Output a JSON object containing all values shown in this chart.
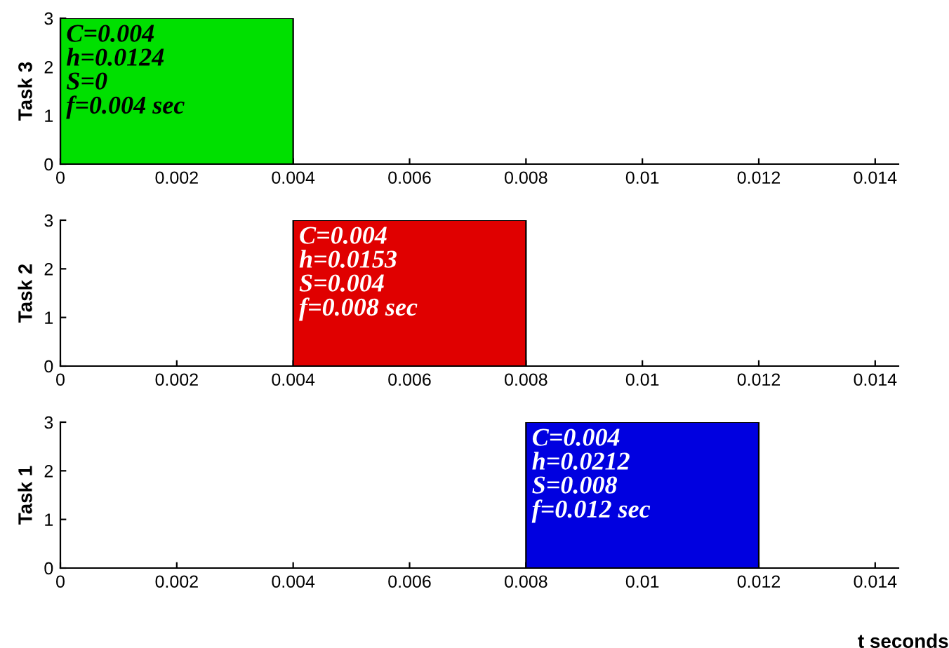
{
  "chart_data": [
    {
      "type": "area",
      "ylabel": "Task 3",
      "xlim": [
        0,
        0.0144
      ],
      "ylim": [
        0,
        3
      ],
      "xticks": [
        0,
        0.002,
        0.004,
        0.006,
        0.008,
        0.01,
        0.012,
        0.014
      ],
      "yticks": [
        0,
        1,
        2,
        3
      ],
      "grid": false,
      "legend": false,
      "series": [
        {
          "color": "#00e000",
          "x": [
            0,
            0.004
          ],
          "values": [
            3,
            3
          ]
        }
      ],
      "annotations": [
        {
          "text": "C=0.004\nh=0.0124\nS=0\nf=0.004 sec",
          "x": 0,
          "y": 3
        }
      ]
    },
    {
      "type": "area",
      "ylabel": "Task 2",
      "xlim": [
        0,
        0.0144
      ],
      "ylim": [
        0,
        3
      ],
      "xticks": [
        0,
        0.002,
        0.004,
        0.006,
        0.008,
        0.01,
        0.012,
        0.014
      ],
      "yticks": [
        0,
        1,
        2,
        3
      ],
      "grid": false,
      "legend": false,
      "series": [
        {
          "color": "#e00000",
          "x": [
            0.004,
            0.008
          ],
          "values": [
            3,
            3
          ]
        }
      ],
      "annotations": [
        {
          "text": "C=0.004\nh=0.0153\nS=0.004\nf=0.008 sec",
          "x": 0.004,
          "y": 3
        }
      ]
    },
    {
      "type": "area",
      "ylabel": "Task 1",
      "xlabel": "t seconds",
      "xlim": [
        0,
        0.0144
      ],
      "ylim": [
        0,
        3
      ],
      "xticks": [
        0,
        0.002,
        0.004,
        0.006,
        0.008,
        0.01,
        0.012,
        0.014
      ],
      "yticks": [
        0,
        1,
        2,
        3
      ],
      "grid": false,
      "legend": false,
      "series": [
        {
          "color": "#0000e0",
          "x": [
            0.008,
            0.012
          ],
          "values": [
            3,
            3
          ]
        }
      ],
      "annotations": [
        {
          "text": "C=0.004\nh=0.0212\nS=0.008\nf=0.012 sec",
          "x": 0.008,
          "y": 3
        }
      ]
    }
  ]
}
